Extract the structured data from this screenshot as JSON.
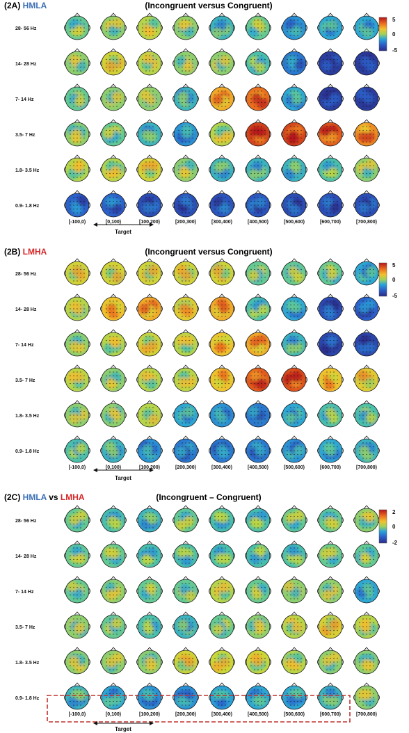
{
  "colors": {
    "hmla": "#3a6fb5",
    "lmha": "#d62728",
    "dashed_box": "#c0302c",
    "colormap": [
      "#2b2b86",
      "#2c5dc9",
      "#2aa3d8",
      "#52c6a1",
      "#c9d83a",
      "#f2c12e",
      "#ea6a1e",
      "#b3151b"
    ]
  },
  "panels": [
    {
      "id": "2A",
      "label_prefix": "(2A) ",
      "label_group": "HMLA",
      "subtitle": "(Incongruent versus Congruent)",
      "colorbar": {
        "ticks": [
          "5",
          "0",
          "-5"
        ]
      },
      "rows": [
        "28- 56 Hz",
        "14- 28 Hz",
        "7- 14 Hz",
        "3.5- 7 Hz",
        "1.8- 3.5 Hz",
        "0.9- 1.8 Hz"
      ],
      "columns": [
        "[-100,0)",
        "[0,100)",
        "[100,200)",
        "[200,300)",
        "[300,400)",
        "[400,500)",
        "[500,600)",
        "[600,700)",
        "[700,800)"
      ],
      "target_label": "Target"
    },
    {
      "id": "2B",
      "label_prefix": "(2B) ",
      "label_group": "LMHA",
      "subtitle": "(Incongruent versus Congruent)",
      "colorbar": {
        "ticks": [
          "5",
          "0",
          "-5"
        ]
      },
      "rows": [
        "28- 56 Hz",
        "14- 28 Hz",
        "7- 14 Hz",
        "3.5- 7 Hz",
        "1.8- 3.5 Hz",
        "0.9- 1.8 Hz"
      ],
      "columns": [
        "[-100,0)",
        "[0,100)",
        "[100,200)",
        "[200,300)",
        "[300,400)",
        "[400,500)",
        "[500,600)",
        "[600,700)",
        "[700,800)"
      ],
      "target_label": "Target"
    },
    {
      "id": "2C",
      "label_prefix": "(2C) ",
      "label_group": "HMLA",
      "label_vs": " vs ",
      "label_group2": "LMHA",
      "subtitle": "(Incongruent – Congruent)",
      "colorbar": {
        "ticks": [
          "2",
          "0",
          "-2"
        ]
      },
      "rows": [
        "28- 56 Hz",
        "14- 28 Hz",
        "7- 14 Hz",
        "3.5- 7 Hz",
        "1.8- 3.5 Hz",
        "0.9- 1.8 Hz"
      ],
      "columns": [
        "[-100,0)",
        "[0,100)",
        "[100,200)",
        "[200,300)",
        "[300,400)",
        "[400,500)",
        "[500,600)",
        "[600,700)",
        "[700,800)"
      ],
      "target_label": "Target"
    }
  ],
  "topomap_levels": {
    "2A": [
      [
        0.45,
        0.5,
        0.55,
        0.5,
        0.35,
        0.45,
        0.25,
        0.3,
        0.3
      ],
      [
        0.5,
        0.6,
        0.55,
        0.5,
        0.5,
        0.4,
        0.2,
        0.05,
        0.05
      ],
      [
        0.45,
        0.5,
        0.5,
        0.35,
        0.75,
        0.85,
        0.3,
        0.05,
        0.05
      ],
      [
        0.5,
        0.45,
        0.35,
        0.25,
        0.55,
        0.92,
        0.92,
        0.88,
        0.8
      ],
      [
        0.55,
        0.55,
        0.6,
        0.5,
        0.35,
        0.35,
        0.35,
        0.4,
        0.5
      ],
      [
        0.15,
        0.15,
        0.1,
        0.1,
        0.12,
        0.12,
        0.1,
        0.1,
        0.1
      ]
    ],
    "2B": [
      [
        0.6,
        0.6,
        0.6,
        0.6,
        0.6,
        0.45,
        0.45,
        0.45,
        0.3
      ],
      [
        0.55,
        0.7,
        0.75,
        0.65,
        0.75,
        0.4,
        0.3,
        0.1,
        0.15
      ],
      [
        0.5,
        0.55,
        0.6,
        0.55,
        0.7,
        0.75,
        0.35,
        0.08,
        0.08
      ],
      [
        0.55,
        0.5,
        0.55,
        0.55,
        0.7,
        0.88,
        0.9,
        0.7,
        0.65
      ],
      [
        0.5,
        0.5,
        0.55,
        0.3,
        0.25,
        0.2,
        0.3,
        0.4,
        0.4
      ],
      [
        0.4,
        0.35,
        0.25,
        0.2,
        0.2,
        0.2,
        0.25,
        0.3,
        0.35
      ]
    ],
    "2C": [
      [
        0.45,
        0.4,
        0.35,
        0.45,
        0.4,
        0.4,
        0.45,
        0.45,
        0.5
      ],
      [
        0.45,
        0.45,
        0.4,
        0.4,
        0.4,
        0.4,
        0.4,
        0.45,
        0.45
      ],
      [
        0.45,
        0.5,
        0.45,
        0.45,
        0.55,
        0.45,
        0.5,
        0.5,
        0.3
      ],
      [
        0.5,
        0.45,
        0.4,
        0.35,
        0.45,
        0.5,
        0.55,
        0.62,
        0.55
      ],
      [
        0.5,
        0.5,
        0.5,
        0.6,
        0.58,
        0.58,
        0.55,
        0.5,
        0.5
      ],
      [
        0.35,
        0.3,
        0.25,
        0.25,
        0.28,
        0.3,
        0.3,
        0.35,
        0.5
      ]
    ]
  }
}
